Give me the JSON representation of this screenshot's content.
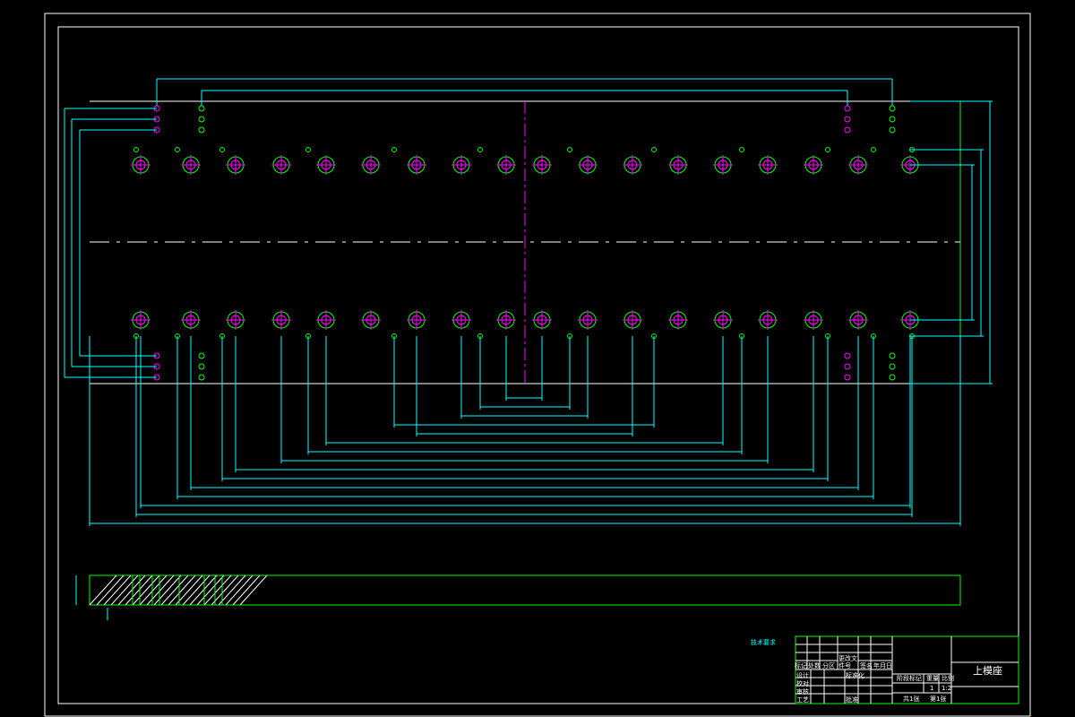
{
  "colors": {
    "frame": "#ffffff",
    "outline": "#00ff00",
    "dimension": "#00ffff",
    "centerline": "#ff00ff",
    "hole_center": "#ff00ff",
    "small_hole": "#00ff00"
  },
  "title_block": {
    "part_name": "上模座",
    "headers": [
      "标记",
      "处数",
      "分区",
      "更改文件号",
      "签名",
      "年月日"
    ],
    "rows": [
      "设计",
      "校对",
      "审核",
      "工艺"
    ],
    "mid": [
      "标准化",
      "批准"
    ],
    "stage_label": "阶段标记",
    "weight_label": "重量",
    "scale_label": "比例",
    "quantity": "1",
    "scale": "1:2",
    "sheets_total": "共1张",
    "sheet_no": "第1张"
  },
  "notes": {
    "heading": "技术要求"
  }
}
